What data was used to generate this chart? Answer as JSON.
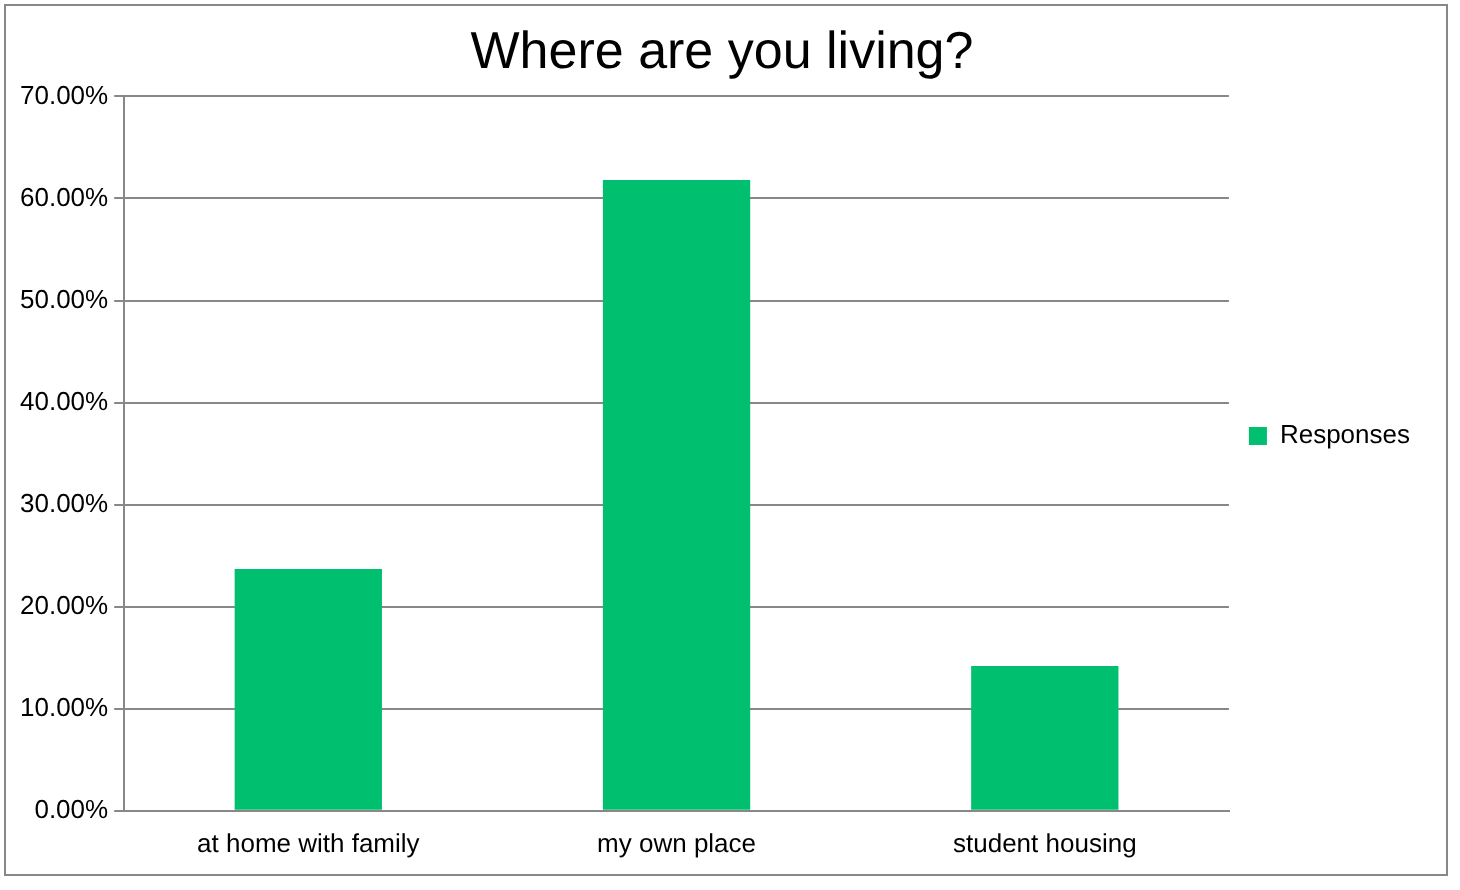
{
  "chart_data": {
    "type": "bar",
    "title": "Where are you living?",
    "categories": [
      "at home with family",
      "my own place",
      "student housing"
    ],
    "series": [
      {
        "name": "Responses",
        "color": "#00bf6f",
        "values": [
          23.7,
          61.8,
          14.2
        ]
      }
    ],
    "ylim": [
      0,
      70
    ],
    "yticks": [
      {
        "value": 0,
        "label": "0.00%"
      },
      {
        "value": 10,
        "label": "10.00%"
      },
      {
        "value": 20,
        "label": "20.00%"
      },
      {
        "value": 30,
        "label": "30.00%"
      },
      {
        "value": 40,
        "label": "40.00%"
      },
      {
        "value": 50,
        "label": "50.00%"
      },
      {
        "value": 60,
        "label": "60.00%"
      },
      {
        "value": 70,
        "label": "70.00%"
      }
    ],
    "grid": "y",
    "legend": "right"
  }
}
